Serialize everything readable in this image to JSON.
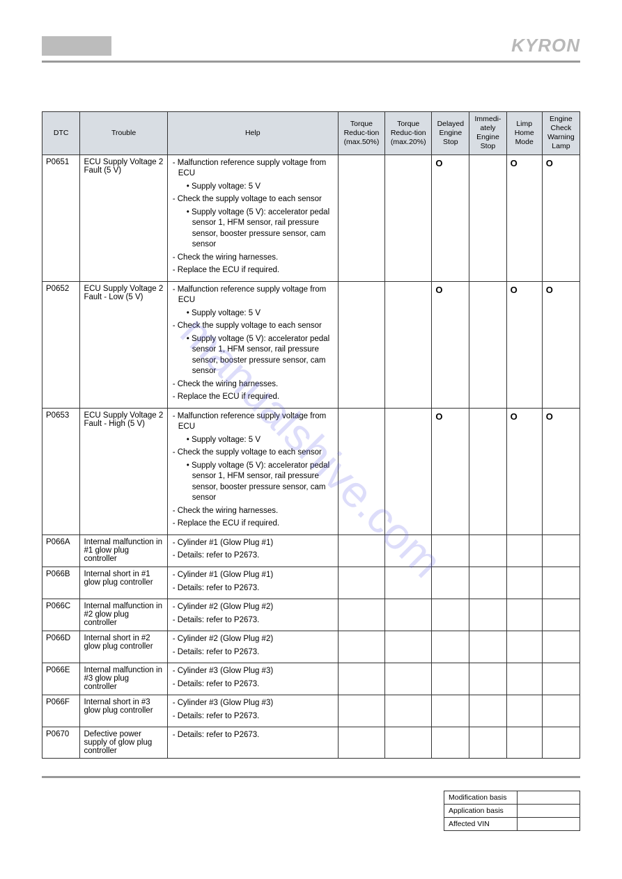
{
  "brand": "KYRON",
  "watermark": "manualshive.com",
  "headers": {
    "dtc": "DTC",
    "trouble": "Trouble",
    "help": "Help",
    "tr50": "Torque Reduc-tion (max.50%)",
    "tr20": "Torque Reduc-tion (max.20%)",
    "delayed": "Delayed Engine Stop",
    "immed": "Immedi-ately Engine Stop",
    "limp": "Limp Home Mode",
    "lamp": "Engine Check Warning Lamp"
  },
  "rows": [
    {
      "dtc": "P0651",
      "trouble": "ECU Supply Voltage 2 Fault (5 V)",
      "help": [
        {
          "t": "Malfunction reference supply voltage from ECU",
          "sub": [
            "Supply voltage: 5 V"
          ]
        },
        {
          "t": "Check the supply voltage to each sensor",
          "sub": [
            "Supply voltage (5 V): accelerator pedal sensor 1, HFM sensor, rail pressure sensor, booster pressure sensor, cam sensor"
          ]
        },
        {
          "t": "Check the wiring harnesses."
        },
        {
          "t": "Replace the ECU if required."
        }
      ],
      "flags": [
        "",
        "",
        "O",
        "",
        "O",
        "O"
      ]
    },
    {
      "dtc": "P0652",
      "trouble": "ECU Supply Voltage 2 Fault - Low (5 V)",
      "help": [
        {
          "t": "Malfunction reference supply voltage from ECU",
          "sub": [
            "Supply voltage: 5 V"
          ]
        },
        {
          "t": "Check the supply voltage to each sensor",
          "sub": [
            "Supply voltage (5 V): accelerator pedal sensor 1, HFM sensor, rail pressure sensor, booster pressure sensor, cam sensor"
          ]
        },
        {
          "t": "Check the wiring harnesses."
        },
        {
          "t": "Replace the ECU if required."
        }
      ],
      "flags": [
        "",
        "",
        "O",
        "",
        "O",
        "O"
      ]
    },
    {
      "dtc": "P0653",
      "trouble": "ECU Supply Voltage 2 Fault - High (5 V)",
      "help": [
        {
          "t": "Malfunction reference supply voltage from ECU",
          "sub": [
            "Supply voltage: 5 V"
          ]
        },
        {
          "t": "Check the supply voltage to each sensor",
          "sub": [
            "Supply voltage (5 V): accelerator pedal sensor 1, HFM sensor, rail pressure sensor, booster pressure sensor, cam sensor"
          ]
        },
        {
          "t": "Check the wiring harnesses."
        },
        {
          "t": "Replace the ECU if required."
        }
      ],
      "flags": [
        "",
        "",
        "O",
        "",
        "O",
        "O"
      ]
    },
    {
      "dtc": "P066A",
      "trouble": "Internal malfunction in #1 glow plug controller",
      "help": [
        {
          "t": "Cylinder #1 (Glow Plug #1)"
        },
        {
          "t": "Details: refer to P2673."
        }
      ],
      "flags": [
        "",
        "",
        "",
        "",
        "",
        ""
      ]
    },
    {
      "dtc": "P066B",
      "trouble": "Internal short in #1 glow plug controller",
      "help": [
        {
          "t": "Cylinder #1 (Glow Plug #1)"
        },
        {
          "t": "Details: refer to P2673."
        }
      ],
      "flags": [
        "",
        "",
        "",
        "",
        "",
        ""
      ]
    },
    {
      "dtc": "P066C",
      "trouble": "Internal malfunction in #2 glow plug controller",
      "help": [
        {
          "t": "Cylinder #2 (Glow Plug #2)"
        },
        {
          "t": "Details: refer to P2673."
        }
      ],
      "flags": [
        "",
        "",
        "",
        "",
        "",
        ""
      ]
    },
    {
      "dtc": "P066D",
      "trouble": "Internal short in #2 glow plug controller",
      "help": [
        {
          "t": "Cylinder #2 (Glow Plug #2)"
        },
        {
          "t": "Details: refer to P2673."
        }
      ],
      "flags": [
        "",
        "",
        "",
        "",
        "",
        ""
      ]
    },
    {
      "dtc": "P066E",
      "trouble": "Internal malfunction in #3 glow plug controller",
      "help": [
        {
          "t": "Cylinder #3 (Glow Plug #3)"
        },
        {
          "t": "Details: refer to P2673."
        }
      ],
      "flags": [
        "",
        "",
        "",
        "",
        "",
        ""
      ]
    },
    {
      "dtc": "P066F",
      "trouble": "Internal short in #3 glow plug controller",
      "help": [
        {
          "t": "Cylinder #3 (Glow Plug #3)"
        },
        {
          "t": "Details: refer to P2673."
        }
      ],
      "flags": [
        "",
        "",
        "",
        "",
        "",
        ""
      ]
    },
    {
      "dtc": "P0670",
      "trouble": "Defective power supply of glow plug controller",
      "help": [
        {
          "t": "Details: refer to P2673."
        }
      ],
      "flags": [
        "",
        "",
        "",
        "",
        "",
        ""
      ]
    }
  ],
  "footer": {
    "mod": "Modification basis",
    "app": "Application basis",
    "vin": "Affected VIN"
  }
}
